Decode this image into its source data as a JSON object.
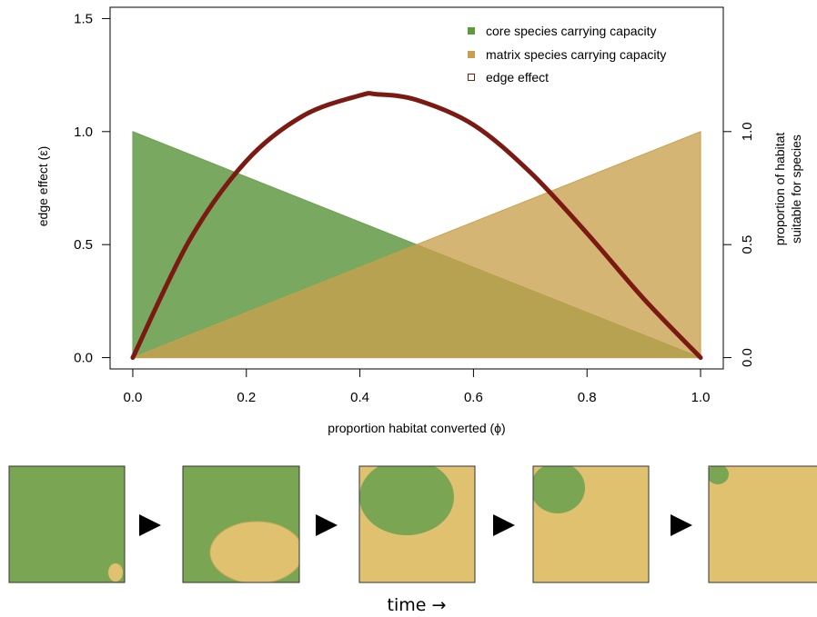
{
  "chart_data": {
    "type": "area",
    "x": [
      0.0,
      0.5,
      1.0
    ],
    "series": [
      {
        "name": "core species carrying capacity",
        "values": [
          1.0,
          0.5,
          0.0
        ],
        "color": "#6aa050",
        "axis": "right"
      },
      {
        "name": "matrix species carrying capacity",
        "values": [
          0.0,
          0.5,
          1.0
        ],
        "color": "#c8a04c",
        "axis": "right"
      },
      {
        "name": "edge effect",
        "type": "line",
        "color": "#7b1a12",
        "axis": "left",
        "x": [
          0.0,
          0.1,
          0.2,
          0.3,
          0.4,
          0.43,
          0.5,
          0.6,
          0.7,
          0.8,
          0.9,
          1.0
        ],
        "values": [
          0.0,
          0.52,
          0.87,
          1.07,
          1.16,
          1.165,
          1.14,
          1.03,
          0.82,
          0.55,
          0.26,
          0.0
        ]
      }
    ],
    "xlabel": "proportion habitat converted (ϕ)",
    "ylabel": "edge effect (ε)",
    "ylabel_right_line1": "proportion of habitat",
    "ylabel_right_line2": "suitable for species",
    "xlim": [
      -0.04,
      1.04
    ],
    "ylim": [
      -0.05,
      1.55
    ],
    "ylim_right": [
      -0.05,
      1.55
    ],
    "x_ticks": [
      0.0,
      0.2,
      0.4,
      0.6,
      0.8,
      1.0
    ],
    "x_tick_labels": [
      "0.0",
      "0.2",
      "0.4",
      "0.6",
      "0.8",
      "1.0"
    ],
    "y_ticks": [
      0.0,
      0.5,
      1.0,
      1.5
    ],
    "y_tick_labels": [
      "0.0",
      "0.5",
      "1.0",
      "1.5"
    ],
    "y_ticks_right": [
      0.0,
      0.5,
      1.0
    ],
    "y_tick_labels_right": [
      "0.0",
      "0.5",
      "1.0"
    ],
    "grid": false,
    "legend_position": "top-right"
  },
  "landscape_panels": {
    "panels": [
      1,
      2,
      3,
      4,
      5
    ],
    "core_color": "#7aa553",
    "matrix_color": "#e0c170",
    "time_label": "time →"
  }
}
